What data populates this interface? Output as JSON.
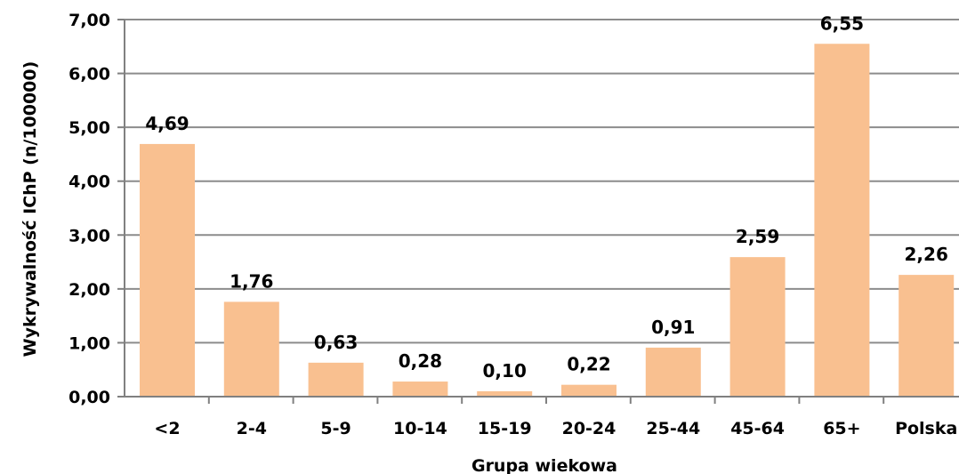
{
  "chart_data": {
    "type": "bar",
    "title": "",
    "xlabel": "Grupa wiekowa",
    "ylabel": "Wykrywalność IChP (n/100000)",
    "categories": [
      "<2",
      "2-4",
      "5-9",
      "10-14",
      "15-19",
      "20-24",
      "25-44",
      "45-64",
      "65+",
      "Polska"
    ],
    "values": [
      4.69,
      1.76,
      0.63,
      0.28,
      0.1,
      0.22,
      0.91,
      2.59,
      6.55,
      2.26
    ],
    "value_labels": [
      "4,69",
      "1,76",
      "0,63",
      "0,28",
      "0,10",
      "0,22",
      "0,91",
      "2,59",
      "6,55",
      "2,26"
    ],
    "ylim": [
      0,
      7
    ],
    "yticks": [
      0,
      1,
      2,
      3,
      4,
      5,
      6,
      7
    ],
    "ytick_labels": [
      "0,00",
      "1,00",
      "2,00",
      "3,00",
      "4,00",
      "5,00",
      "6,00",
      "7,00"
    ],
    "grid": true,
    "bar_color": "#f9c090",
    "grid_color": "#8c8c8c",
    "axis_color": "#808080"
  }
}
